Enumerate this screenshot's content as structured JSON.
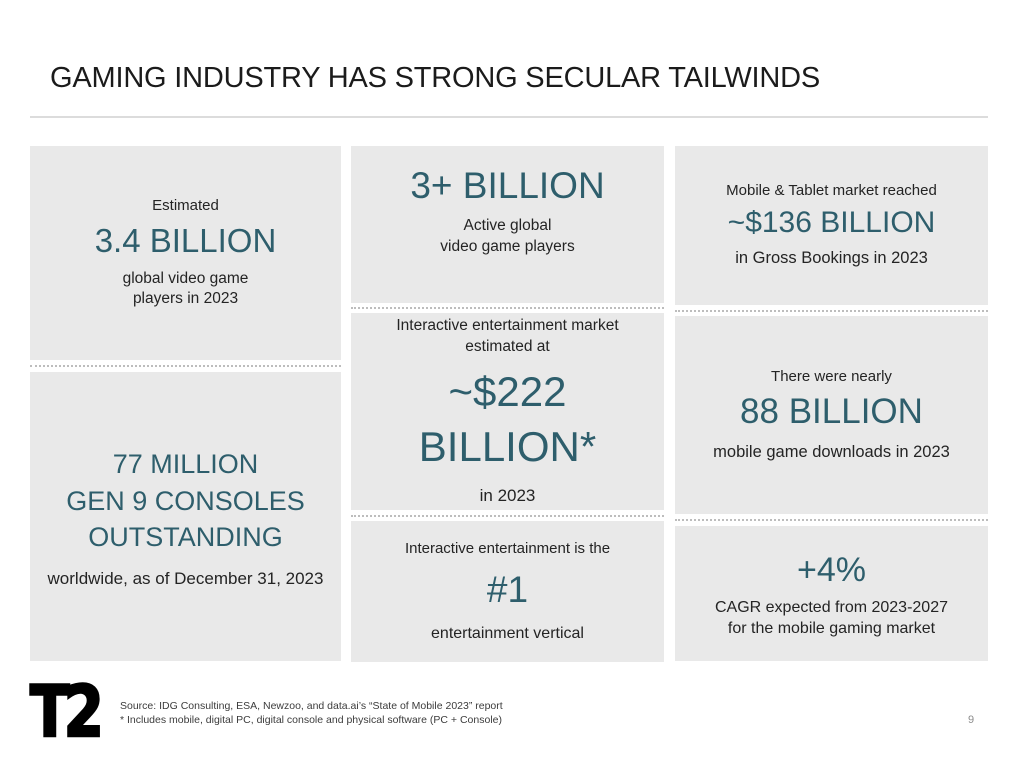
{
  "slide": {
    "title": "GAMING INDUSTRY HAS STRONG SECULAR TAILWINDS",
    "page_number": "9",
    "logo_text": "T2"
  },
  "colors": {
    "accent_teal": "#2e5e6c",
    "box_background": "#e9e9e9",
    "body_text": "#242424"
  },
  "cards": [
    {
      "id": "global-players-estimate",
      "pre": "Estimated",
      "big": "3.4 BILLION",
      "post": "global video game\nplayers in 2023"
    },
    {
      "id": "gen9-consoles",
      "big": "77 MILLION\nGEN 9 CONSOLES\nOUTSTANDING",
      "post": "worldwide, as of December 31, 2023"
    },
    {
      "id": "active-players",
      "big": "3+ BILLION",
      "post": "Active global\nvideo game players"
    },
    {
      "id": "interactive-market-size",
      "pre": "Interactive entertainment market\nestimated at",
      "big": "~$222\nBILLION*",
      "post": "in 2023"
    },
    {
      "id": "number-one-vertical",
      "pre": "Interactive entertainment is the",
      "big": "#1",
      "post": "entertainment vertical"
    },
    {
      "id": "mobile-tablet-market",
      "pre": "Mobile & Tablet market reached",
      "big": "~$136 BILLION",
      "post": "in Gross Bookings in 2023"
    },
    {
      "id": "mobile-downloads",
      "pre": "There were nearly",
      "big": "88 BILLION",
      "post": "mobile game downloads in 2023"
    },
    {
      "id": "mobile-cagr",
      "big": "+4%",
      "post": "CAGR expected from 2023-2027\nfor the mobile gaming market"
    }
  ],
  "footer": {
    "source_line": "Source:  IDG Consulting, ESA, Newzoo, and data.ai’s “State of Mobile 2023” report",
    "footnote_line": "*   Includes mobile, digital PC, digital console and physical software (PC + Console)"
  }
}
